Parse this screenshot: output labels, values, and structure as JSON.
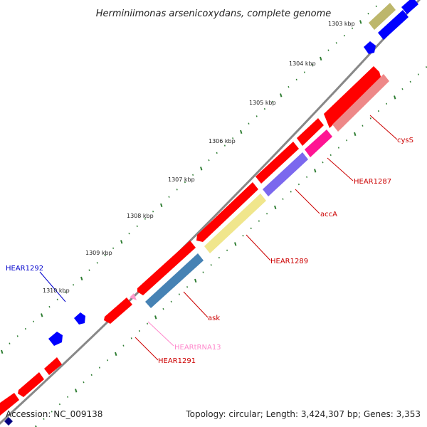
{
  "map": {
    "title": "Herminiimonas arsenicoxydans, complete genome",
    "accession": "Accession: NC_009138",
    "summary": "Topology: circular; Length: 3,424,307 bp; Genes: 3,353",
    "kbp_labels": [
      "1303 kbp",
      "1304 kbp",
      "1305 kbp",
      "1306 kbp",
      "1307 kbp",
      "1308 kbp",
      "1309 kbp",
      "1310 kbp"
    ],
    "colors": {
      "background": "#ffffff",
      "backbone": "#808080",
      "forward_cds": "#ff0000",
      "reverse_cds": "#0000ff",
      "trna": "#ff99cc",
      "ruler_tick": "#2e7d32",
      "cysS": "#ee8888",
      "HEAR1287": "#ff1493",
      "accA": "#7b68ee",
      "HEAR1289": "#f0e68c",
      "ask": "#4682b4",
      "olive": "#bdb76b",
      "label_red": "#cc0000",
      "label_blue": "#0000cc",
      "label_pink": "#ff88cc"
    }
  },
  "features": [
    {
      "name": "cysS",
      "label": "cysS",
      "color": "#ee8888",
      "label_color": "#cc0000"
    },
    {
      "name": "HEAR1287",
      "label": "HEAR1287",
      "color": "#ff1493",
      "label_color": "#cc0000"
    },
    {
      "name": "accA",
      "label": "accA",
      "color": "#7b68ee",
      "label_color": "#cc0000"
    },
    {
      "name": "HEAR1289",
      "label": "HEAR1289",
      "color": "#f0e68c",
      "label_color": "#cc0000"
    },
    {
      "name": "ask",
      "label": "ask",
      "color": "#4682b4",
      "label_color": "#cc0000"
    },
    {
      "name": "HEARtRNA13",
      "label": "HEARtRNA13",
      "color": "#ff99cc",
      "label_color": "#ff88cc"
    },
    {
      "name": "HEAR1291",
      "label": "HEAR1291",
      "color": "#ff0000",
      "label_color": "#cc0000"
    },
    {
      "name": "HEAR1292",
      "label": "HEAR1292",
      "color": "#0000ff",
      "label_color": "#0000cc"
    }
  ]
}
